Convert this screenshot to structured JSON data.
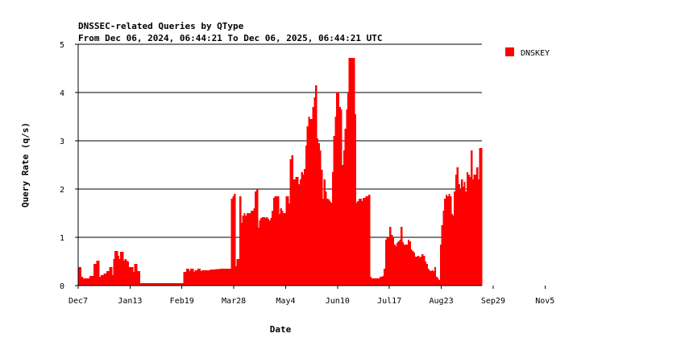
{
  "chart_data": {
    "type": "area",
    "title": "DNSSEC-related Queries by QType",
    "subtitle": "From Dec 06, 2024, 06:44:21 To Dec 06, 2025, 06:44:21 UTC",
    "xlabel": "Date",
    "ylabel": "Query Rate (q/s)",
    "ylim": [
      0,
      5
    ],
    "y_ticks": [
      0,
      1,
      2,
      3,
      4,
      5
    ],
    "grid": true,
    "legend_position": "right",
    "x_ticks": [
      {
        "label": "Dec7",
        "day": 1
      },
      {
        "label": "Jan13",
        "day": 38
      },
      {
        "label": "Feb19",
        "day": 75
      },
      {
        "label": "Mar28",
        "day": 112
      },
      {
        "label": "May4",
        "day": 149
      },
      {
        "label": "Jun10",
        "day": 186
      },
      {
        "label": "Jul17",
        "day": 223
      },
      {
        "label": "Aug23",
        "day": 260
      },
      {
        "label": "Sep29",
        "day": 297
      },
      {
        "label": "Nov5",
        "day": 334
      }
    ],
    "series": [
      {
        "name": "DNSKEY",
        "color": "#ff0000",
        "values": [
          0.38,
          0.38,
          0.18,
          0.15,
          0.15,
          0.15,
          0.15,
          0.15,
          0.2,
          0.2,
          0.2,
          0.45,
          0.45,
          0.52,
          0.52,
          0.18,
          0.22,
          0.22,
          0.25,
          0.25,
          0.3,
          0.3,
          0.38,
          0.38,
          0.22,
          0.55,
          0.72,
          0.72,
          0.62,
          0.55,
          0.7,
          0.7,
          0.52,
          0.55,
          0.52,
          0.5,
          0.38,
          0.38,
          0.38,
          0.28,
          0.45,
          0.45,
          0.3,
          0.3,
          0.05,
          0.05,
          0.05,
          0.05,
          0.05,
          0.05,
          0.05,
          0.05,
          0.05,
          0.05,
          0.05,
          0.05,
          0.05,
          0.05,
          0.05,
          0.05,
          0.05,
          0.05,
          0.05,
          0.05,
          0.05,
          0.05,
          0.05,
          0.05,
          0.05,
          0.05,
          0.05,
          0.05,
          0.05,
          0.05,
          0.05,
          0.28,
          0.28,
          0.35,
          0.35,
          0.3,
          0.35,
          0.35,
          0.28,
          0.32,
          0.32,
          0.35,
          0.35,
          0.3,
          0.32,
          0.32,
          0.32,
          0.32,
          0.32,
          0.32,
          0.33,
          0.33,
          0.33,
          0.33,
          0.34,
          0.34,
          0.34,
          0.35,
          0.35,
          0.35,
          0.35,
          0.35,
          0.35,
          0.35,
          0.35,
          1.8,
          1.85,
          1.9,
          0.4,
          0.55,
          0.55,
          1.85,
          1.3,
          1.45,
          1.5,
          1.45,
          1.5,
          1.5,
          1.5,
          1.55,
          1.55,
          1.6,
          1.95,
          2.0,
          1.2,
          1.35,
          1.4,
          1.42,
          1.42,
          1.4,
          1.42,
          1.38,
          1.35,
          1.4,
          1.55,
          1.82,
          1.85,
          1.85,
          1.85,
          1.48,
          1.6,
          1.55,
          1.5,
          1.5,
          1.85,
          1.85,
          1.7,
          2.62,
          2.7,
          2.2,
          2.2,
          2.25,
          2.25,
          2.1,
          2.2,
          2.35,
          2.3,
          2.42,
          2.9,
          3.3,
          3.5,
          3.45,
          3.45,
          3.7,
          3.9,
          4.15,
          3.05,
          2.95,
          2.8,
          2.4,
          1.8,
          2.2,
          1.95,
          1.8,
          1.78,
          1.75,
          1.72,
          2.35,
          3.1,
          3.5,
          4.0,
          4.0,
          3.7,
          3.65,
          2.5,
          2.8,
          3.25,
          3.65,
          4.0,
          4.72,
          4.72,
          4.72,
          4.72,
          3.55,
          1.72,
          1.75,
          1.8,
          1.8,
          1.75,
          1.82,
          1.82,
          1.85,
          1.85,
          1.88,
          0.18,
          0.15,
          0.15,
          0.15,
          0.15,
          0.15,
          0.15,
          0.18,
          0.18,
          0.2,
          0.35,
          0.95,
          1.0,
          1.0,
          1.22,
          1.05,
          1.0,
          0.85,
          0.82,
          0.88,
          0.92,
          0.95,
          1.22,
          0.9,
          0.85,
          0.85,
          0.85,
          0.95,
          0.92,
          0.75,
          0.72,
          0.68,
          0.6,
          0.6,
          0.62,
          0.58,
          0.6,
          0.65,
          0.62,
          0.5,
          0.45,
          0.35,
          0.32,
          0.3,
          0.32,
          0.3,
          0.38,
          0.18,
          0.15,
          0.12,
          0.85,
          1.25,
          1.55,
          1.8,
          1.88,
          1.85,
          1.9,
          1.85,
          1.48,
          1.45,
          1.95,
          2.3,
          2.45,
          2.1,
          2.0,
          2.2,
          2.05,
          2.15,
          1.95,
          2.35,
          2.3,
          2.25,
          2.8,
          2.2,
          2.3,
          2.3,
          2.45,
          2.2,
          2.85,
          2.85
        ]
      }
    ]
  }
}
